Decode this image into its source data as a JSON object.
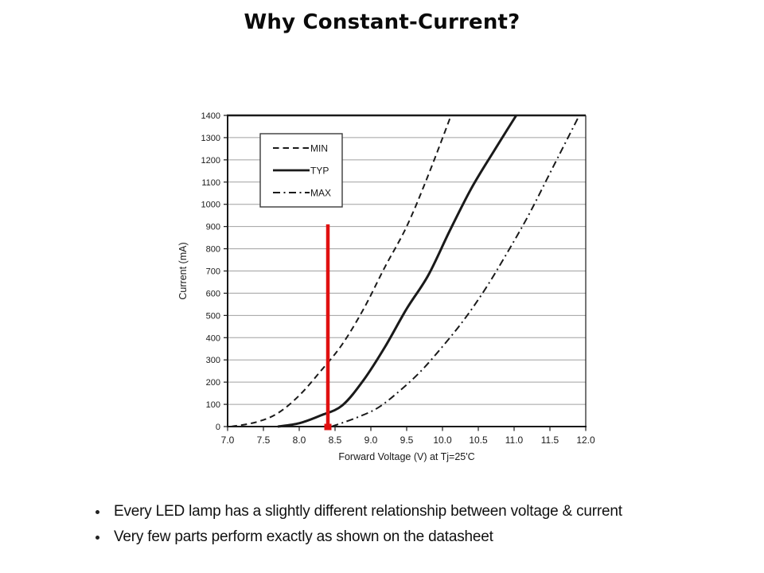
{
  "slide": {
    "title": "Why Constant-Current?"
  },
  "bullets": [
    "Every LED lamp has a slightly different relationship between voltage & current",
    "Very few parts perform exactly as shown on the datasheet"
  ],
  "chart_data": {
    "type": "line",
    "title": "",
    "xlabel": "Forward Voltage (V) at Tj=25'C",
    "ylabel": "Current (mA)",
    "xlim": [
      7.0,
      12.0
    ],
    "ylim": [
      0,
      1400
    ],
    "x_ticks": [
      7.0,
      7.5,
      8.0,
      8.5,
      9.0,
      9.5,
      10.0,
      10.5,
      11.0,
      11.5,
      12.0
    ],
    "x_tick_labels": [
      "7.0",
      "7.5",
      "8.0",
      "8.5",
      "9.0",
      "9.5",
      "10.0",
      "10.5",
      "11.0",
      "11.5",
      "12.0"
    ],
    "y_ticks": [
      0,
      100,
      200,
      300,
      400,
      500,
      600,
      700,
      800,
      900,
      1000,
      1100,
      1200,
      1300,
      1400
    ],
    "y_tick_labels": [
      "0",
      "100",
      "200",
      "300",
      "400",
      "500",
      "600",
      "700",
      "800",
      "900",
      "1000",
      "1100",
      "1200",
      "1300",
      "1400"
    ],
    "grid": "horizontal-gridlines-on",
    "legend_position": "upper-left-inside",
    "series": [
      {
        "name": "MIN",
        "line_style": "dashed",
        "color": "#1a1a1a",
        "points_v_ma": [
          [
            7.05,
            0
          ],
          [
            7.4,
            20
          ],
          [
            7.7,
            60
          ],
          [
            8.0,
            140
          ],
          [
            8.3,
            250
          ],
          [
            8.6,
            370
          ],
          [
            8.9,
            530
          ],
          [
            9.2,
            720
          ],
          [
            9.5,
            900
          ],
          [
            9.8,
            1130
          ],
          [
            10.12,
            1400
          ]
        ]
      },
      {
        "name": "TYP",
        "line_style": "solid",
        "color": "#1a1a1a",
        "points_v_ma": [
          [
            7.7,
            0
          ],
          [
            8.0,
            15
          ],
          [
            8.3,
            50
          ],
          [
            8.6,
            95
          ],
          [
            8.9,
            210
          ],
          [
            9.2,
            360
          ],
          [
            9.5,
            530
          ],
          [
            9.8,
            680
          ],
          [
            10.1,
            880
          ],
          [
            10.4,
            1070
          ],
          [
            10.7,
            1230
          ],
          [
            11.03,
            1400
          ]
        ]
      },
      {
        "name": "MAX",
        "line_style": "dash-dot",
        "color": "#1a1a1a",
        "points_v_ma": [
          [
            8.45,
            0
          ],
          [
            8.8,
            40
          ],
          [
            9.1,
            85
          ],
          [
            9.4,
            160
          ],
          [
            9.7,
            250
          ],
          [
            10.0,
            360
          ],
          [
            10.3,
            480
          ],
          [
            10.6,
            620
          ],
          [
            10.9,
            780
          ],
          [
            11.2,
            950
          ],
          [
            11.5,
            1140
          ],
          [
            11.91,
            1400
          ]
        ]
      }
    ],
    "annotation_line": {
      "type": "vertical-line",
      "x_v": 8.4,
      "y_from_ma": 0,
      "y_to_ma": 910,
      "color": "#e01010",
      "base_marker": "small-red-square"
    },
    "colors": {
      "axis": "#1a1a1a",
      "grid": "#a0a0a0",
      "curve": "#1a1a1a",
      "annotation_red": "#e01010",
      "background": "#ffffff"
    }
  }
}
